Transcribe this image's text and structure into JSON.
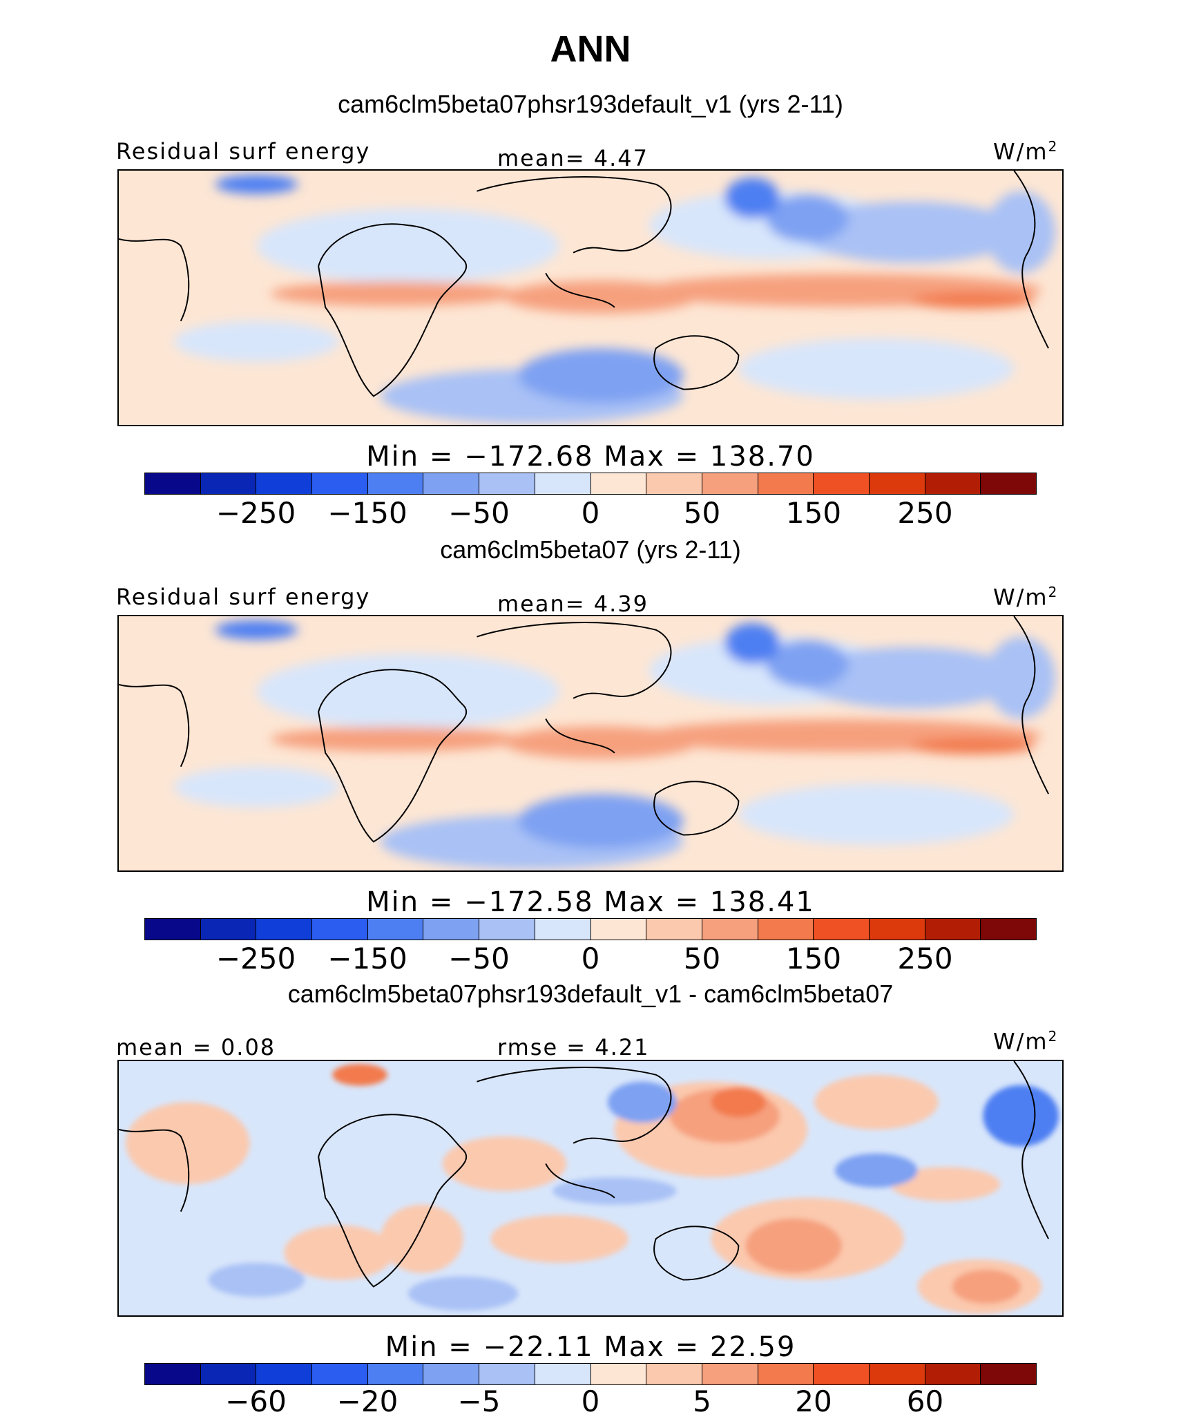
{
  "title": "ANN",
  "palette": [
    "#08088a",
    "#0a26b4",
    "#0f3fd8",
    "#2b5ef0",
    "#4d7ff2",
    "#7ea1f2",
    "#a9c1f5",
    "#d8e6fb",
    "#fde6d4",
    "#fbc9ae",
    "#f6a07e",
    "#f27a4d",
    "#ef5124",
    "#dc3a0c",
    "#b21e05",
    "#7e0707"
  ],
  "panels": [
    {
      "case": "cam6clm5beta07phsr193default_v1 (yrs 2-11)",
      "left_label": "Residual surf energy",
      "center_label": "mean=   4.47",
      "unit": "W/m",
      "unit_sup": "2",
      "minmax": "Min = −172.68  Max = 138.70",
      "ticks": [
        "−250",
        "−150",
        "−50",
        "0",
        "50",
        "150",
        "250"
      ],
      "map_icon": "world-map-contour-icon"
    },
    {
      "case": "cam6clm5beta07 (yrs 2-11)",
      "left_label": "Residual surf energy",
      "center_label": "mean=   4.39",
      "unit": "W/m",
      "unit_sup": "2",
      "minmax": "Min = −172.58  Max = 138.41",
      "ticks": [
        "−250",
        "−150",
        "−50",
        "0",
        "50",
        "150",
        "250"
      ],
      "map_icon": "world-map-contour-icon"
    },
    {
      "case": "cam6clm5beta07phsr193default_v1 - cam6clm5beta07",
      "left_label": "mean =   0.08",
      "center_label": "rmse =   4.21",
      "unit": "W/m",
      "unit_sup": "2",
      "minmax": "Min = −22.11  Max =  22.59",
      "ticks": [
        "−60",
        "−20",
        "−5",
        "0",
        "5",
        "20",
        "60"
      ],
      "map_icon": "world-map-difference-icon"
    }
  ]
}
